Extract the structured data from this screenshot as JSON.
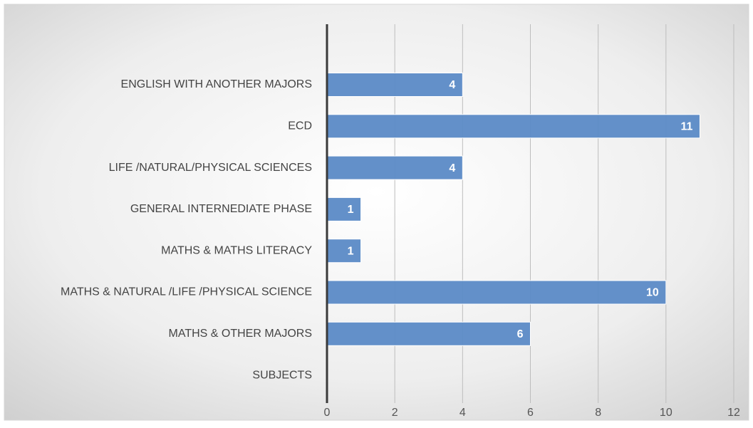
{
  "chart_data": {
    "type": "bar",
    "orientation": "horizontal",
    "categories": [
      "ENGLISH WITH ANOTHER MAJORS",
      "ECD",
      "LIFE /NATURAL/PHYSICAL  SCIENCES",
      "GENERAL INTERNEDIATE PHASE",
      "MATHS & MATHS LITERACY",
      "MATHS & NATURAL /LIFE /PHYSICAL SCIENCE",
      "MATHS & OTHER MAJORS",
      "SUBJECTS"
    ],
    "values": [
      4,
      11,
      4,
      1,
      1,
      10,
      6,
      null
    ],
    "data_labels": [
      "4",
      "11",
      "4",
      "1",
      "1",
      "10",
      "6",
      ""
    ],
    "xlim": [
      0,
      12
    ],
    "x_ticks": [
      0,
      2,
      4,
      6,
      8,
      10,
      12
    ],
    "gridlines": "vertical",
    "bar_color": "#5b8ac6",
    "axis_color": "#3a3a3a",
    "background": "light-gray-radial-gradient"
  }
}
